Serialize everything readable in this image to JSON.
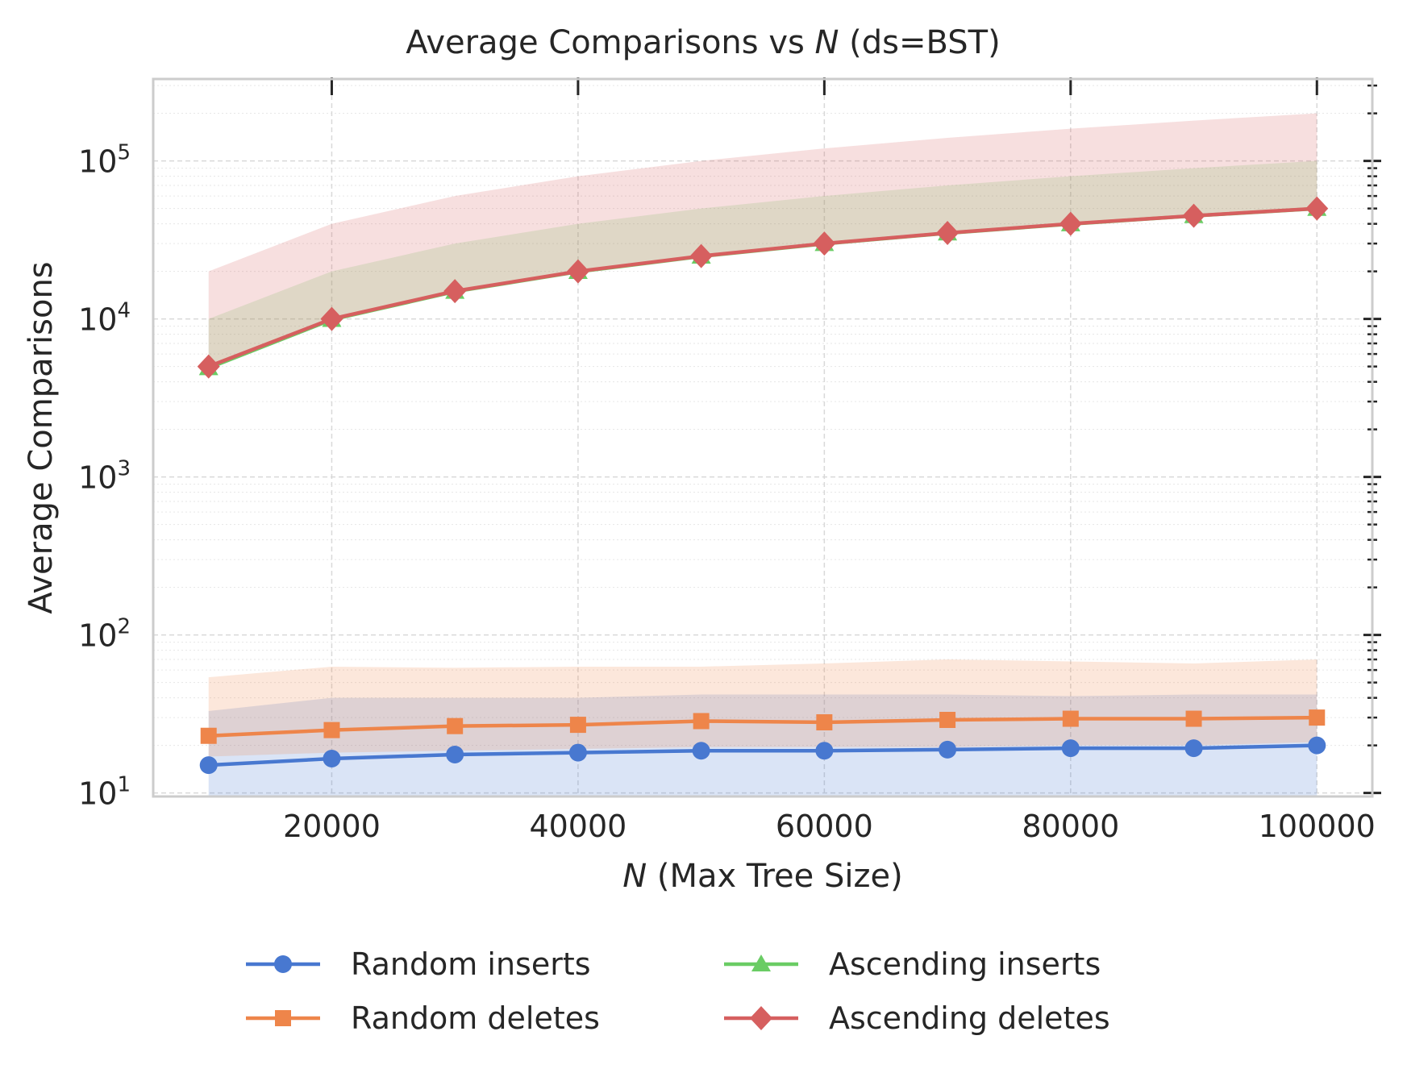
{
  "chart_data": {
    "type": "line",
    "title_prefix": "Average Comparisons vs ",
    "title_var": "N",
    "title_suffix": " (ds=BST)",
    "xlabel_var": "N",
    "xlabel_suffix": " (Max Tree Size)",
    "ylabel": "Average Comparisons",
    "yscale": "log",
    "xlim": [
      5500,
      104500
    ],
    "ylim": [
      9.5,
      330000
    ],
    "grid": true,
    "legend_position": "bottom-center",
    "x_ticks": [
      20000,
      40000,
      60000,
      80000,
      100000
    ],
    "x_tick_labels": [
      "20000",
      "40000",
      "60000",
      "80000",
      "100000"
    ],
    "y_ticks": [
      10,
      100,
      1000,
      10000,
      100000
    ],
    "y_tick_bases": [
      "10",
      "10",
      "10",
      "10",
      "10"
    ],
    "y_tick_exps": [
      "1",
      "2",
      "3",
      "4",
      "5"
    ],
    "x": [
      10000,
      20000,
      30000,
      40000,
      50000,
      60000,
      70000,
      80000,
      90000,
      100000
    ],
    "series": [
      {
        "name": "Random inserts",
        "color": "#4878d0",
        "marker": "circle",
        "values": [
          15,
          16.5,
          17.5,
          18,
          18.5,
          18.5,
          18.8,
          19.2,
          19.2,
          20
        ],
        "band_lower": [
          9.5,
          9.5,
          9.5,
          9.5,
          9.5,
          9.5,
          9.5,
          9.5,
          9.5,
          9.5
        ],
        "band_upper": [
          33,
          40,
          40,
          40,
          42,
          42,
          42,
          41,
          42,
          42
        ]
      },
      {
        "name": "Random deletes",
        "color": "#ee854a",
        "marker": "square",
        "values": [
          23,
          25,
          26.5,
          27,
          28.5,
          28,
          29,
          29.5,
          29.5,
          30
        ],
        "band_lower": [
          17,
          18,
          18.5,
          19,
          19.5,
          19.5,
          19.5,
          20,
          20,
          21
        ],
        "band_upper": [
          54,
          63,
          62,
          63,
          63,
          66,
          70,
          68,
          66,
          70
        ]
      },
      {
        "name": "Ascending inserts",
        "color": "#6acc64",
        "marker": "triangle",
        "values": [
          4900,
          9900,
          14900,
          19900,
          24900,
          29900,
          34900,
          39900,
          44900,
          49900
        ],
        "band_lower": [
          4900,
          9900,
          14900,
          19900,
          24900,
          29900,
          34900,
          39900,
          44900,
          49900
        ],
        "band_upper": [
          10000,
          20000,
          30000,
          40000,
          50000,
          60000,
          70000,
          80000,
          90000,
          100000
        ]
      },
      {
        "name": "Ascending deletes",
        "color": "#d65f5f",
        "marker": "diamond",
        "values": [
          5000,
          10000,
          15000,
          20000,
          25000,
          30000,
          35000,
          40000,
          45000,
          50000
        ],
        "band_lower": [
          5000,
          10000,
          15000,
          20000,
          25000,
          30000,
          35000,
          40000,
          45000,
          50000
        ],
        "band_upper": [
          20000,
          40000,
          60000,
          80000,
          100000,
          120000,
          140000,
          160000,
          180000,
          200000
        ]
      }
    ]
  }
}
